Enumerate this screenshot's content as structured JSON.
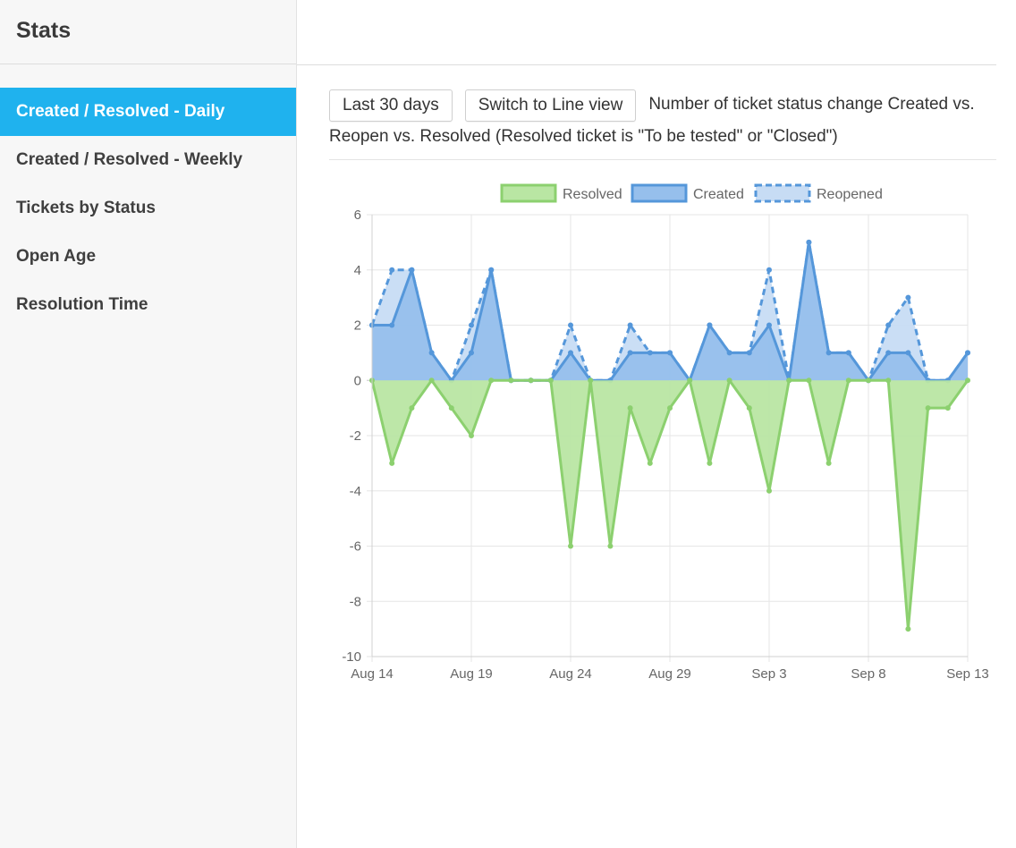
{
  "sidebar": {
    "title": "Stats",
    "items": [
      {
        "label": "Created / Resolved - Daily",
        "active": true
      },
      {
        "label": "Created / Resolved - Weekly",
        "active": false
      },
      {
        "label": "Tickets by Status",
        "active": false
      },
      {
        "label": "Open Age",
        "active": false
      },
      {
        "label": "Resolution Time",
        "active": false
      }
    ]
  },
  "toolbar": {
    "range_label": "Last 30 days",
    "switch_label": "Switch to Line view",
    "description": "Number of ticket status change Created vs. Reopen vs. Resolved (Resolved ticket is \"To be tested\" or \"Closed\")"
  },
  "chart_data": {
    "type": "area",
    "x": [
      "Aug 14",
      "Aug 15",
      "Aug 16",
      "Aug 17",
      "Aug 18",
      "Aug 19",
      "Aug 20",
      "Aug 21",
      "Aug 22",
      "Aug 23",
      "Aug 24",
      "Aug 25",
      "Aug 26",
      "Aug 27",
      "Aug 28",
      "Aug 29",
      "Aug 30",
      "Aug 31",
      "Sep 1",
      "Sep 2",
      "Sep 3",
      "Sep 4",
      "Sep 5",
      "Sep 6",
      "Sep 7",
      "Sep 8",
      "Sep 9",
      "Sep 10",
      "Sep 11",
      "Sep 12",
      "Sep 13"
    ],
    "xticks": [
      "Aug 14",
      "Aug 19",
      "Aug 24",
      "Aug 29",
      "Sep 3",
      "Sep 8",
      "Sep 13"
    ],
    "ylim": [
      -10,
      6
    ],
    "yticks": [
      -10,
      -8,
      -6,
      -4,
      -2,
      0,
      2,
      4,
      6
    ],
    "grid": true,
    "legend": "top",
    "series": [
      {
        "name": "Resolved",
        "color": "#8cd06f",
        "fill": "#b9e6a3",
        "dashed": false,
        "values": [
          0,
          -3,
          -1,
          0,
          -1,
          -2,
          0,
          0,
          0,
          0,
          -6,
          0,
          -6,
          -1,
          -3,
          -1,
          0,
          -3,
          0,
          -1,
          -4,
          0,
          0,
          -3,
          0,
          0,
          0,
          -9,
          -1,
          -1,
          0
        ]
      },
      {
        "name": "Created",
        "color": "#5597da",
        "fill": "#96bfec",
        "dashed": false,
        "values": [
          2,
          2,
          4,
          1,
          0,
          1,
          4,
          0,
          0,
          0,
          1,
          0,
          0,
          1,
          1,
          1,
          0,
          2,
          1,
          1,
          2,
          0,
          5,
          1,
          1,
          0,
          1,
          1,
          0,
          0,
          1
        ]
      },
      {
        "name": "Reopened",
        "color": "#5597da",
        "fill": "#c7dcf4",
        "dashed": true,
        "values": [
          2,
          4,
          4,
          1,
          0,
          2,
          4,
          0,
          0,
          0,
          2,
          0,
          0,
          2,
          1,
          1,
          0,
          2,
          1,
          1,
          4,
          0,
          5,
          1,
          1,
          0,
          2,
          3,
          0,
          0,
          1
        ]
      }
    ]
  }
}
